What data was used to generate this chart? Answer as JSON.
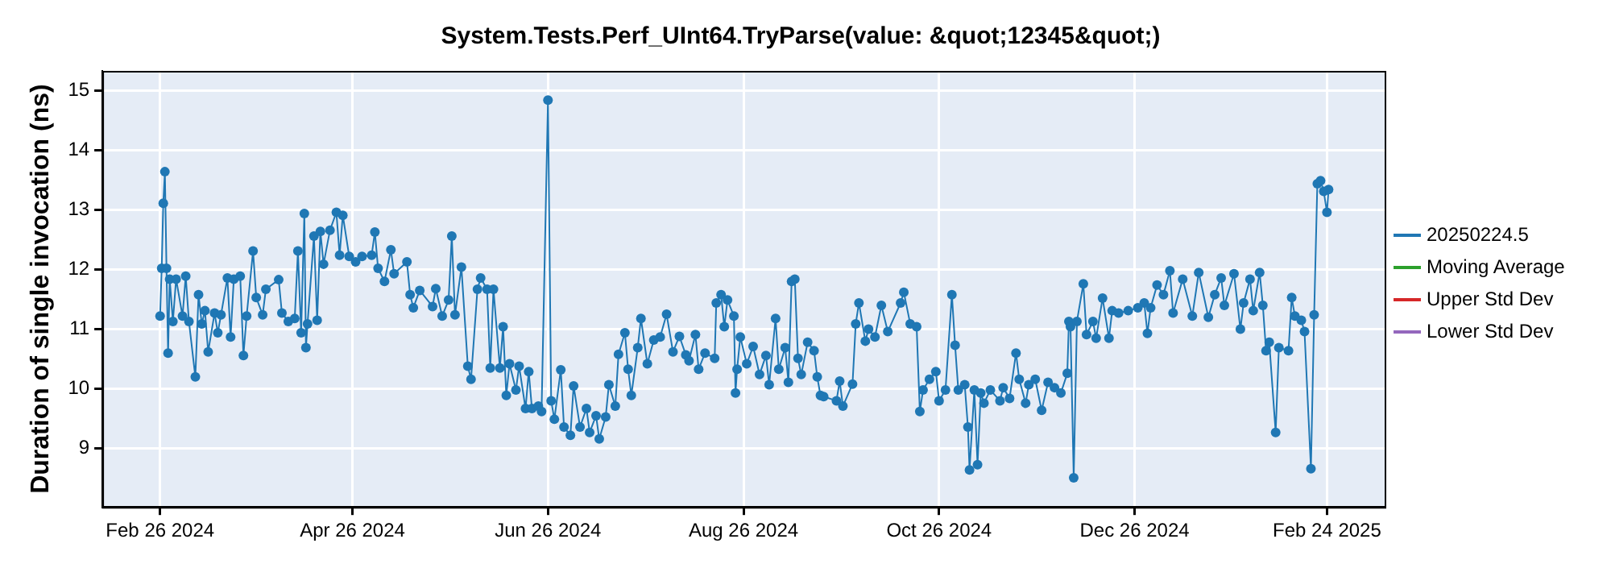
{
  "chart_data": {
    "type": "line",
    "title": "System.Tests.Perf_UInt64.TryParse(value: &quot;12345&quot;)",
    "ylabel": "Duration of single invocation (ns)",
    "x": [
      "2024-02-26",
      "2024-02-26T12:00",
      "2024-02-27",
      "2024-02-27T12:00",
      "2024-02-28",
      "2024-02-28T12:00",
      "2024-02-29",
      "2024-03-01",
      "2024-03-02",
      "2024-03-04",
      "2024-03-05",
      "2024-03-06",
      "2024-03-08",
      "2024-03-09",
      "2024-03-10",
      "2024-03-11",
      "2024-03-12",
      "2024-03-14",
      "2024-03-15",
      "2024-03-16",
      "2024-03-18",
      "2024-03-19",
      "2024-03-20",
      "2024-03-22",
      "2024-03-23",
      "2024-03-24",
      "2024-03-26",
      "2024-03-27",
      "2024-03-29",
      "2024-03-30",
      "2024-04-03",
      "2024-04-04",
      "2024-04-06",
      "2024-04-08",
      "2024-04-09",
      "2024-04-10",
      "2024-04-11",
      "2024-04-11T12:00",
      "2024-04-12",
      "2024-04-14",
      "2024-04-15",
      "2024-04-16",
      "2024-04-17",
      "2024-04-19",
      "2024-04-21",
      "2024-04-22",
      "2024-04-23",
      "2024-04-25",
      "2024-04-27",
      "2024-04-29",
      "2024-05-02",
      "2024-05-03",
      "2024-05-04",
      "2024-05-06",
      "2024-05-08",
      "2024-05-09",
      "2024-05-13",
      "2024-05-14",
      "2024-05-15",
      "2024-05-17",
      "2024-05-21",
      "2024-05-22",
      "2024-05-24",
      "2024-05-26",
      "2024-05-27",
      "2024-05-28",
      "2024-05-30",
      "2024-06-01",
      "2024-06-02",
      "2024-06-04",
      "2024-06-05",
      "2024-06-07",
      "2024-06-08",
      "2024-06-09",
      "2024-06-11",
      "2024-06-12",
      "2024-06-13",
      "2024-06-14",
      "2024-06-16",
      "2024-06-17",
      "2024-06-19",
      "2024-06-20",
      "2024-06-21",
      "2024-06-23",
      "2024-06-24",
      "2024-06-26",
      "2024-06-27",
      "2024-06-28",
      "2024-06-30",
      "2024-07-01",
      "2024-07-03",
      "2024-07-04",
      "2024-07-06",
      "2024-07-08",
      "2024-07-09",
      "2024-07-11",
      "2024-07-12",
      "2024-07-14",
      "2024-07-15",
      "2024-07-17",
      "2024-07-18",
      "2024-07-20",
      "2024-07-21",
      "2024-07-22",
      "2024-07-24",
      "2024-07-25",
      "2024-07-27",
      "2024-07-29",
      "2024-07-31",
      "2024-08-02",
      "2024-08-04",
      "2024-08-06",
      "2024-08-08",
      "2024-08-09",
      "2024-08-11",
      "2024-08-12",
      "2024-08-14",
      "2024-08-17",
      "2024-08-17T12:00",
      "2024-08-19",
      "2024-08-20",
      "2024-08-21",
      "2024-08-23",
      "2024-08-23T12:00",
      "2024-08-24",
      "2024-08-25",
      "2024-08-27",
      "2024-08-29",
      "2024-08-31",
      "2024-09-02",
      "2024-09-03",
      "2024-09-05",
      "2024-09-06",
      "2024-09-08",
      "2024-09-09",
      "2024-09-10",
      "2024-09-11",
      "2024-09-12",
      "2024-09-13",
      "2024-09-15",
      "2024-09-17",
      "2024-09-18",
      "2024-09-19",
      "2024-09-20",
      "2024-09-24",
      "2024-09-25",
      "2024-09-26",
      "2024-09-29",
      "2024-09-30",
      "2024-10-01",
      "2024-10-03",
      "2024-10-04",
      "2024-10-06",
      "2024-10-08",
      "2024-10-10",
      "2024-10-14",
      "2024-10-15",
      "2024-10-17",
      "2024-10-19",
      "2024-10-20",
      "2024-10-21",
      "2024-10-23",
      "2024-10-25",
      "2024-10-26",
      "2024-10-28",
      "2024-10-30",
      "2024-10-31",
      "2024-11-01",
      "2024-11-03",
      "2024-11-04",
      "2024-11-04T12:00",
      "2024-11-06",
      "2024-11-07",
      "2024-11-08",
      "2024-11-09",
      "2024-11-11",
      "2024-11-14",
      "2024-11-15",
      "2024-11-17",
      "2024-11-19",
      "2024-11-20",
      "2024-11-22",
      "2024-11-23",
      "2024-11-25",
      "2024-11-27",
      "2024-11-29",
      "2024-12-01",
      "2024-12-03",
      "2024-12-05",
      "2024-12-05T12:00",
      "2024-12-06",
      "2024-12-07",
      "2024-12-08",
      "2024-12-10",
      "2024-12-11",
      "2024-12-13",
      "2024-12-14",
      "2024-12-16",
      "2024-12-18",
      "2024-12-19",
      "2024-12-21",
      "2024-12-24",
      "2024-12-27",
      "2024-12-29",
      "2024-12-30",
      "2024-12-31",
      "2025-01-02",
      "2025-01-04",
      "2025-01-06",
      "2025-01-07",
      "2025-01-10",
      "2025-01-13",
      "2025-01-15",
      "2025-01-18",
      "2025-01-20",
      "2025-01-22",
      "2025-01-23",
      "2025-01-26",
      "2025-01-28",
      "2025-01-29",
      "2025-01-31",
      "2025-02-01",
      "2025-02-03",
      "2025-02-04",
      "2025-02-05",
      "2025-02-06",
      "2025-02-08",
      "2025-02-09",
      "2025-02-12",
      "2025-02-13",
      "2025-02-14",
      "2025-02-16",
      "2025-02-17",
      "2025-02-19",
      "2025-02-20",
      "2025-02-21",
      "2025-02-22",
      "2025-02-23",
      "2025-02-24",
      "2025-02-24T12:00"
    ],
    "series": [
      {
        "name": "20250224.5",
        "color": "#1f77b4",
        "values": [
          11.22,
          12.02,
          13.11,
          13.64,
          12.02,
          10.6,
          11.84,
          11.13,
          11.84,
          11.22,
          11.89,
          11.13,
          10.2,
          11.58,
          11.09,
          11.31,
          10.62,
          11.27,
          10.94,
          11.24,
          11.86,
          10.87,
          11.84,
          11.89,
          10.56,
          11.22,
          12.31,
          11.53,
          11.24,
          11.67,
          11.83,
          11.27,
          11.13,
          11.18,
          12.31,
          10.94,
          12.94,
          10.69,
          11.09,
          12.56,
          11.15,
          12.64,
          12.09,
          12.66,
          12.96,
          12.24,
          12.91,
          12.22,
          12.13,
          12.22,
          12.24,
          12.63,
          12.02,
          11.8,
          12.33,
          11.93,
          12.13,
          11.58,
          11.36,
          11.65,
          11.38,
          11.68,
          11.22,
          11.49,
          12.56,
          11.24,
          12.04,
          10.38,
          10.16,
          11.67,
          11.86,
          11.67,
          10.35,
          11.67,
          10.35,
          11.04,
          9.89,
          10.42,
          9.98,
          10.38,
          9.67,
          10.29,
          9.67,
          9.71,
          9.62,
          14.84,
          9.8,
          9.49,
          10.32,
          9.36,
          9.22,
          10.05,
          9.36,
          9.67,
          9.27,
          9.55,
          9.16,
          9.53,
          10.07,
          9.71,
          10.58,
          10.94,
          10.33,
          9.89,
          10.69,
          11.18,
          10.42,
          10.82,
          10.87,
          11.25,
          10.62,
          10.88,
          10.57,
          10.47,
          10.91,
          10.33,
          10.6,
          10.51,
          11.44,
          11.58,
          11.04,
          11.49,
          11.22,
          9.93,
          10.33,
          10.87,
          10.42,
          10.71,
          10.24,
          10.56,
          10.07,
          11.18,
          10.33,
          10.69,
          10.11,
          11.8,
          11.84,
          10.51,
          10.24,
          10.78,
          10.64,
          10.2,
          9.89,
          9.87,
          9.8,
          10.13,
          9.71,
          10.08,
          11.09,
          11.44,
          10.8,
          11.0,
          10.87,
          11.4,
          10.96,
          11.44,
          11.62,
          11.09,
          11.04,
          9.62,
          9.98,
          10.16,
          10.29,
          9.8,
          9.98,
          11.58,
          10.73,
          9.98,
          10.07,
          9.36,
          8.64,
          9.98,
          8.73,
          9.93,
          9.76,
          9.98,
          9.8,
          10.02,
          9.84,
          10.6,
          10.16,
          9.76,
          10.07,
          10.16,
          9.64,
          10.11,
          10.02,
          9.93,
          10.26,
          11.13,
          11.04,
          8.51,
          11.13,
          11.76,
          10.91,
          11.13,
          10.85,
          11.52,
          10.85,
          11.31,
          11.27,
          11.31,
          11.36,
          11.44,
          10.93,
          11.36,
          11.74,
          11.58,
          11.98,
          11.27,
          11.84,
          11.22,
          11.95,
          11.2,
          11.58,
          11.86,
          11.4,
          11.93,
          11.0,
          11.44,
          11.84,
          11.31,
          11.95,
          11.4,
          10.64,
          10.78,
          9.27,
          10.69,
          10.64,
          11.53,
          11.22,
          11.15,
          10.96,
          8.66,
          11.24,
          13.44,
          13.49,
          13.31,
          12.96,
          13.34
        ]
      },
      {
        "name": "Moving Average",
        "color": "#2ca02c",
        "values": [
          null,
          null,
          null,
          null,
          null,
          null,
          null,
          null,
          null,
          null,
          null,
          null,
          null,
          null,
          null,
          null,
          null,
          null,
          null,
          null,
          null,
          null,
          null,
          null,
          null,
          null,
          null,
          null,
          null,
          null,
          null,
          null,
          null,
          null,
          null,
          null,
          null,
          null,
          null,
          null,
          null,
          null,
          null,
          null,
          null,
          null,
          null,
          null,
          null,
          null,
          null,
          null,
          null,
          null,
          null,
          null,
          null,
          null,
          null,
          null,
          null,
          null,
          null,
          null,
          null,
          null,
          null,
          null,
          null,
          null,
          null,
          null,
          null,
          null,
          null,
          null,
          null,
          null,
          null,
          null,
          null,
          null,
          null,
          null,
          null,
          null,
          null,
          null,
          null,
          null,
          null,
          null,
          null,
          null,
          null,
          null,
          null,
          null,
          null,
          null,
          null,
          null,
          null,
          null,
          null,
          null,
          null,
          null,
          null,
          null,
          null,
          null,
          null,
          null,
          null,
          null,
          null,
          null,
          null,
          null,
          null,
          null,
          null,
          null,
          null,
          null,
          null,
          null,
          null,
          null,
          null,
          null,
          null,
          null,
          null,
          null,
          null,
          null,
          null,
          null,
          null,
          null,
          null,
          null,
          null,
          null,
          null,
          null,
          null,
          null,
          null,
          null,
          null,
          null,
          null,
          null,
          null,
          null,
          null,
          null,
          null,
          null,
          null,
          null,
          null,
          null,
          null,
          null,
          null,
          null,
          null,
          null,
          null,
          null,
          null,
          null,
          null,
          null,
          null,
          null,
          null,
          null,
          null,
          null,
          null,
          null,
          null,
          null,
          null,
          null,
          null,
          null,
          null,
          null,
          null,
          null,
          null,
          null,
          null,
          null,
          null,
          null,
          null,
          null,
          null,
          null,
          null,
          null,
          null,
          null,
          null,
          null,
          null,
          null,
          null,
          null,
          null,
          null,
          null,
          null,
          null,
          null,
          null,
          null,
          null,
          null,
          null,
          null,
          null,
          null,
          null,
          null,
          null,
          null,
          null,
          null,
          null,
          null,
          null,
          null
        ]
      },
      {
        "name": "Upper Std Dev",
        "color": "#d62728",
        "values": [
          null,
          null,
          null,
          null,
          null,
          null,
          null,
          null,
          null,
          null,
          null,
          null,
          null,
          null,
          null,
          null,
          null,
          null,
          null,
          null,
          null,
          null,
          null,
          null,
          null,
          null,
          null,
          null,
          null,
          null,
          null,
          null,
          null,
          null,
          null,
          null,
          null,
          null,
          null,
          null,
          null,
          null,
          null,
          null,
          null,
          null,
          null,
          null,
          null,
          null,
          null,
          null,
          null,
          null,
          null,
          null,
          null,
          null,
          null,
          null,
          null,
          null,
          null,
          null,
          null,
          null,
          null,
          null,
          null,
          null,
          null,
          null,
          null,
          null,
          null,
          null,
          null,
          null,
          null,
          null,
          null,
          null,
          null,
          null,
          null,
          null,
          null,
          null,
          null,
          null,
          null,
          null,
          null,
          null,
          null,
          null,
          null,
          null,
          null,
          null,
          null,
          null,
          null,
          null,
          null,
          null,
          null,
          null,
          null,
          null,
          null,
          null,
          null,
          null,
          null,
          null,
          null,
          null,
          null,
          null,
          null,
          null,
          null,
          null,
          null,
          null,
          null,
          null,
          null,
          null,
          null,
          null,
          null,
          null,
          null,
          null,
          null,
          null,
          null,
          null,
          null,
          null,
          null,
          null,
          null,
          null,
          null,
          null,
          null,
          null,
          null,
          null,
          null,
          null,
          null,
          null,
          null,
          null,
          null,
          null,
          null,
          null,
          null,
          null,
          null,
          null,
          null,
          null,
          null,
          null,
          null,
          null,
          null,
          null,
          null,
          null,
          null,
          null,
          null,
          null,
          null,
          null,
          null,
          null,
          null,
          null,
          null,
          null,
          null,
          null,
          null,
          null,
          null,
          null,
          null,
          null,
          null,
          null,
          null,
          null,
          null,
          null,
          null,
          null,
          null,
          null,
          null,
          null,
          null,
          null,
          null,
          null,
          null,
          null,
          null,
          null,
          null,
          null,
          null,
          null,
          null,
          null,
          null,
          null,
          null,
          null,
          null,
          null,
          null,
          null,
          null,
          null,
          null,
          null,
          null,
          null,
          null,
          null,
          null,
          null
        ]
      },
      {
        "name": "Lower Std Dev",
        "color": "#9467bd",
        "values": [
          null,
          null,
          null,
          null,
          null,
          null,
          null,
          null,
          null,
          null,
          null,
          null,
          null,
          null,
          null,
          null,
          null,
          null,
          null,
          null,
          null,
          null,
          null,
          null,
          null,
          null,
          null,
          null,
          null,
          null,
          null,
          null,
          null,
          null,
          null,
          null,
          null,
          null,
          null,
          null,
          null,
          null,
          null,
          null,
          null,
          null,
          null,
          null,
          null,
          null,
          null,
          null,
          null,
          null,
          null,
          null,
          null,
          null,
          null,
          null,
          null,
          null,
          null,
          null,
          null,
          null,
          null,
          null,
          null,
          null,
          null,
          null,
          null,
          null,
          null,
          null,
          null,
          null,
          null,
          null,
          null,
          null,
          null,
          null,
          null,
          null,
          null,
          null,
          null,
          null,
          null,
          null,
          null,
          null,
          null,
          null,
          null,
          null,
          null,
          null,
          null,
          null,
          null,
          null,
          null,
          null,
          null,
          null,
          null,
          null,
          null,
          null,
          null,
          null,
          null,
          null,
          null,
          null,
          null,
          null,
          null,
          null,
          null,
          null,
          null,
          null,
          null,
          null,
          null,
          null,
          null,
          null,
          null,
          null,
          null,
          null,
          null,
          null,
          null,
          null,
          null,
          null,
          null,
          null,
          null,
          null,
          null,
          null,
          null,
          null,
          null,
          null,
          null,
          null,
          null,
          null,
          null,
          null,
          null,
          null,
          null,
          null,
          null,
          null,
          null,
          null,
          null,
          null,
          null,
          null,
          null,
          null,
          null,
          null,
          null,
          null,
          null,
          null,
          null,
          null,
          null,
          null,
          null,
          null,
          null,
          null,
          null,
          null,
          null,
          null,
          null,
          null,
          null,
          null,
          null,
          null,
          null,
          null,
          null,
          null,
          null,
          null,
          null,
          null,
          null,
          null,
          null,
          null,
          null,
          null,
          null,
          null,
          null,
          null,
          null,
          null,
          null,
          null,
          null,
          null,
          null,
          null,
          null,
          null,
          null,
          null,
          null,
          null,
          null,
          null,
          null,
          null,
          null,
          null,
          null,
          null,
          null,
          null,
          null,
          null
        ]
      }
    ],
    "xlim": [
      "2024-02-08",
      "2025-03-14"
    ],
    "xticks": [
      {
        "value": "2024-02-26",
        "label": "Feb 26 2024"
      },
      {
        "value": "2024-04-26",
        "label": "Apr 26 2024"
      },
      {
        "value": "2024-06-26",
        "label": "Jun 26 2024"
      },
      {
        "value": "2024-08-26",
        "label": "Aug 26 2024"
      },
      {
        "value": "2024-10-26",
        "label": "Oct 26 2024"
      },
      {
        "value": "2024-12-26",
        "label": "Dec 26 2024"
      },
      {
        "value": "2025-02-24",
        "label": "Feb 24 2025"
      }
    ],
    "ylim": [
      8.02,
      15.33
    ],
    "yticks": [
      9,
      10,
      11,
      12,
      13,
      14,
      15
    ],
    "grid": true,
    "legend": "right",
    "marker": "circle",
    "line_style": "solid"
  }
}
